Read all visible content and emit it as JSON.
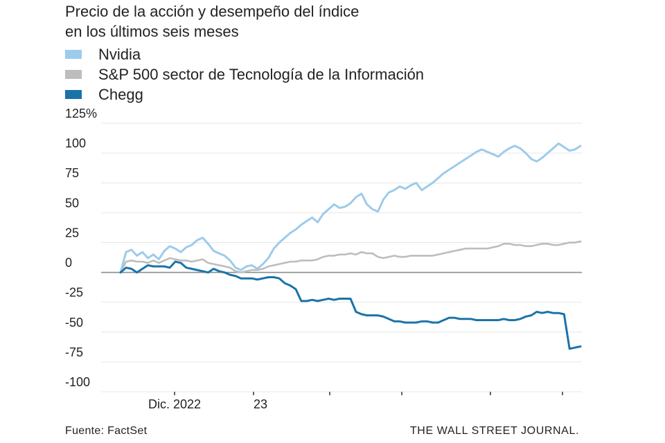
{
  "chart_data": {
    "type": "line",
    "title_lines": [
      "Precio de la acción y desempeño del índice",
      "en los últimos seis meses"
    ],
    "ylim": [
      -100,
      125
    ],
    "y_ticks": [
      125,
      100,
      75,
      50,
      25,
      0,
      -25,
      -50,
      -75,
      -100
    ],
    "y_tick_labels": [
      "125%",
      "100",
      "75",
      "50",
      "25",
      "0",
      "-25",
      "-50",
      "-75",
      "-100"
    ],
    "x_tick_labels": [
      "Dic. 2022",
      "23"
    ],
    "grid": true,
    "legend_position": "top-left",
    "series": [
      {
        "name": "Nvidia",
        "color": "#9dcbeb",
        "values": [
          0,
          17,
          19,
          14,
          17,
          12,
          15,
          11,
          18,
          22,
          20,
          17,
          21,
          23,
          27,
          29,
          24,
          18,
          16,
          14,
          10,
          4,
          2,
          5,
          6,
          3,
          7,
          12,
          20,
          25,
          29,
          33,
          36,
          40,
          43,
          46,
          42,
          49,
          53,
          57,
          54,
          55,
          58,
          63,
          66,
          57,
          53,
          51,
          61,
          67,
          69,
          72,
          70,
          73,
          75,
          69,
          72,
          75,
          79,
          83,
          86,
          89,
          92,
          95,
          98,
          101,
          103,
          101,
          99,
          97,
          101,
          104,
          106,
          104,
          100,
          95,
          93,
          96,
          100,
          104,
          108,
          105,
          102,
          103,
          106
        ]
      },
      {
        "name": "S&P 500 sector de Tecnología de la Información",
        "color": "#bdbdbd",
        "values": [
          0,
          9,
          10,
          9,
          9,
          8,
          10,
          8,
          10,
          12,
          11,
          10,
          10,
          9,
          10,
          11,
          8,
          7,
          6,
          5,
          4,
          1,
          0,
          1,
          2,
          2,
          3,
          5,
          6,
          7,
          8,
          9,
          9,
          10,
          10,
          10,
          11,
          13,
          14,
          14,
          15,
          15,
          16,
          15,
          17,
          16,
          16,
          13,
          12,
          13,
          14,
          13,
          13,
          14,
          14,
          14,
          14,
          14,
          15,
          16,
          17,
          18,
          19,
          20,
          20,
          20,
          20,
          20,
          21,
          22,
          24,
          24,
          23,
          23,
          22,
          22,
          23,
          24,
          24,
          23,
          23,
          24,
          25,
          25,
          26
        ]
      },
      {
        "name": "Chegg",
        "color": "#1a73a8",
        "values": [
          0,
          4,
          3,
          0,
          3,
          6,
          5,
          5,
          5,
          4,
          9,
          8,
          4,
          3,
          2,
          1,
          0,
          3,
          1,
          0,
          -2,
          -3,
          -5,
          -5,
          -5,
          -6,
          -5,
          -4,
          -4,
          -5,
          -9,
          -11,
          -14,
          -24,
          -24,
          -23,
          -24,
          -23,
          -22,
          -23,
          -22,
          -22,
          -22,
          -33,
          -35,
          -36,
          -36,
          -36,
          -37,
          -39,
          -41,
          -41,
          -42,
          -42,
          -42,
          -41,
          -41,
          -42,
          -42,
          -40,
          -38,
          -38,
          -39,
          -39,
          -39,
          -40,
          -40,
          -40,
          -40,
          -40,
          -39,
          -40,
          -40,
          -39,
          -37,
          -36,
          -33,
          -34,
          -33,
          -34,
          -34,
          -35,
          -64,
          -63,
          -62
        ]
      }
    ]
  },
  "footer": {
    "source": "Fuente: FactSet",
    "brand": "THE WALL STREET JOURNAL."
  }
}
